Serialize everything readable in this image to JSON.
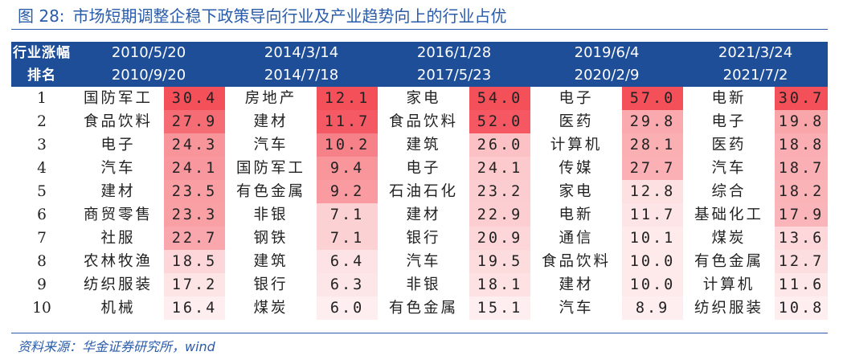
{
  "title": {
    "figure": "图 28:",
    "text": "市场短期调整企稳下政策导向行业及产业趋势向上的行业占优"
  },
  "source": "资料来源：华金证券研究所，wind",
  "header": {
    "corner_top": "行业涨幅",
    "corner_bottom": "排名"
  },
  "colors": {
    "title": "#2a5caa",
    "header_bg": "#1f4e99",
    "heat_max": "#f4505a",
    "heat_min": "#ffffff"
  },
  "chart_data": {
    "type": "table",
    "periods": [
      {
        "start": "2010/5/20",
        "end": "2010/9/20"
      },
      {
        "start": "2014/3/14",
        "end": "2014/7/18"
      },
      {
        "start": "2016/1/28",
        "end": "2017/5/23"
      },
      {
        "start": "2019/6/4",
        "end": "2020/2/9"
      },
      {
        "start": "2021/3/24",
        "end": "2021/7/2"
      }
    ],
    "rows": [
      {
        "rank": "1",
        "cells": [
          {
            "industry": "国防军工",
            "value": "30.4"
          },
          {
            "industry": "房地产",
            "value": "12.1"
          },
          {
            "industry": "家电",
            "value": "54.0"
          },
          {
            "industry": "电子",
            "value": "57.0"
          },
          {
            "industry": "电新",
            "value": "30.7"
          }
        ]
      },
      {
        "rank": "2",
        "cells": [
          {
            "industry": "食品饮料",
            "value": "27.9"
          },
          {
            "industry": "建材",
            "value": "11.7"
          },
          {
            "industry": "食品饮料",
            "value": "52.0"
          },
          {
            "industry": "医药",
            "value": "29.8"
          },
          {
            "industry": "电子",
            "value": "19.8"
          }
        ]
      },
      {
        "rank": "3",
        "cells": [
          {
            "industry": "电子",
            "value": "24.3"
          },
          {
            "industry": "汽车",
            "value": "10.2"
          },
          {
            "industry": "建筑",
            "value": "26.0"
          },
          {
            "industry": "计算机",
            "value": "28.1"
          },
          {
            "industry": "医药",
            "value": "18.8"
          }
        ]
      },
      {
        "rank": "4",
        "cells": [
          {
            "industry": "汽车",
            "value": "24.1"
          },
          {
            "industry": "国防军工",
            "value": "9.4"
          },
          {
            "industry": "电子",
            "value": "24.1"
          },
          {
            "industry": "传媒",
            "value": "27.7"
          },
          {
            "industry": "汽车",
            "value": "18.7"
          }
        ]
      },
      {
        "rank": "5",
        "cells": [
          {
            "industry": "建材",
            "value": "23.5"
          },
          {
            "industry": "有色金属",
            "value": "9.2"
          },
          {
            "industry": "石油石化",
            "value": "23.2"
          },
          {
            "industry": "家电",
            "value": "12.8"
          },
          {
            "industry": "综合",
            "value": "18.2"
          }
        ]
      },
      {
        "rank": "6",
        "cells": [
          {
            "industry": "商贸零售",
            "value": "23.3"
          },
          {
            "industry": "非银",
            "value": "7.1"
          },
          {
            "industry": "建材",
            "value": "22.9"
          },
          {
            "industry": "电新",
            "value": "11.7"
          },
          {
            "industry": "基础化工",
            "value": "17.9"
          }
        ]
      },
      {
        "rank": "7",
        "cells": [
          {
            "industry": "社服",
            "value": "22.7"
          },
          {
            "industry": "钢铁",
            "value": "7.1"
          },
          {
            "industry": "银行",
            "value": "20.9"
          },
          {
            "industry": "通信",
            "value": "10.1"
          },
          {
            "industry": "煤炭",
            "value": "13.6"
          }
        ]
      },
      {
        "rank": "8",
        "cells": [
          {
            "industry": "农林牧渔",
            "value": "18.5"
          },
          {
            "industry": "建筑",
            "value": "6.4"
          },
          {
            "industry": "汽车",
            "value": "19.5"
          },
          {
            "industry": "食品饮料",
            "value": "10.0"
          },
          {
            "industry": "有色金属",
            "value": "12.7"
          }
        ]
      },
      {
        "rank": "9",
        "cells": [
          {
            "industry": "纺织服装",
            "value": "17.2"
          },
          {
            "industry": "银行",
            "value": "6.3"
          },
          {
            "industry": "非银",
            "value": "18.1"
          },
          {
            "industry": "建材",
            "value": "10.0"
          },
          {
            "industry": "计算机",
            "value": "11.6"
          }
        ]
      },
      {
        "rank": "10",
        "cells": [
          {
            "industry": "机械",
            "value": "16.4"
          },
          {
            "industry": "煤炭",
            "value": "6.0"
          },
          {
            "industry": "有色金属",
            "value": "15.1"
          },
          {
            "industry": "汽车",
            "value": "8.9"
          },
          {
            "industry": "纺织服装",
            "value": "10.8"
          }
        ]
      }
    ]
  }
}
